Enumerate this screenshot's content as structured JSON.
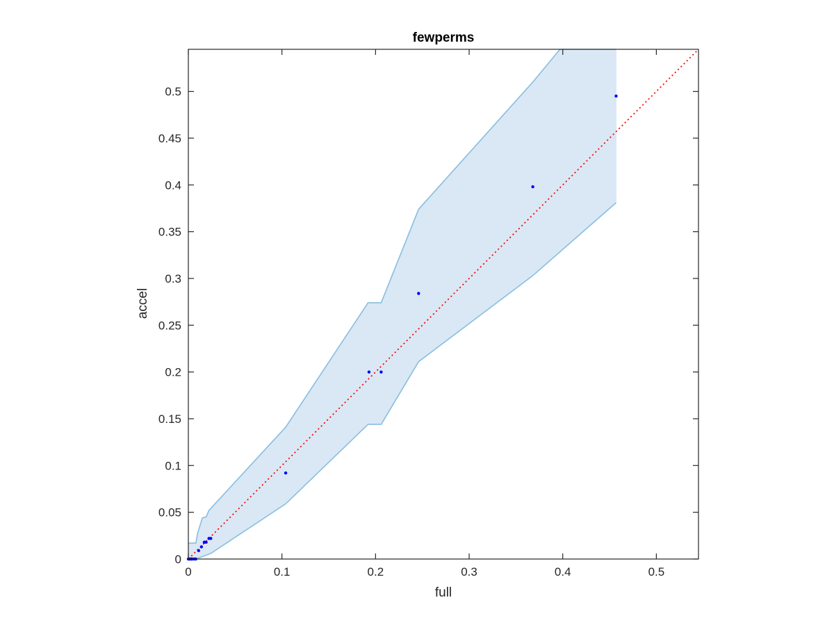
{
  "chart_data": {
    "type": "scatter",
    "title": "fewperms",
    "xlabel": "full",
    "ylabel": "accel",
    "xlim": [
      0,
      0.545
    ],
    "ylim": [
      0,
      0.545
    ],
    "xticks": [
      0,
      0.1,
      0.2,
      0.3,
      0.4,
      0.5
    ],
    "xtick_labels": [
      "0",
      "0.1",
      "0.2",
      "0.3",
      "0.4",
      "0.5"
    ],
    "yticks": [
      0,
      0.05,
      0.1,
      0.15,
      0.2,
      0.25,
      0.3,
      0.35,
      0.4,
      0.45,
      0.5
    ],
    "ytick_labels": [
      "0",
      "0.05",
      "0.1",
      "0.15",
      "0.2",
      "0.25",
      "0.3",
      "0.35",
      "0.4",
      "0.45",
      "0.5"
    ],
    "grid": false,
    "colors": {
      "points": "#0000ff",
      "band_fill": "#d9e8f4",
      "band_edge": "#88bde0",
      "reference_line": "#ff0000",
      "axes": "#262626"
    },
    "points": [
      {
        "x": 0,
        "y": 0
      },
      {
        "x": 0.001,
        "y": 0
      },
      {
        "x": 0.002,
        "y": 0
      },
      {
        "x": 0.003,
        "y": 0
      },
      {
        "x": 0.004,
        "y": 0
      },
      {
        "x": 0.006,
        "y": 0
      },
      {
        "x": 0.008,
        "y": 0
      },
      {
        "x": 0.011,
        "y": 0.009
      },
      {
        "x": 0.014,
        "y": 0.013
      },
      {
        "x": 0.017,
        "y": 0.018
      },
      {
        "x": 0.019,
        "y": 0.018
      },
      {
        "x": 0.022,
        "y": 0.022
      },
      {
        "x": 0.024,
        "y": 0.022
      },
      {
        "x": 0.104,
        "y": 0.092
      },
      {
        "x": 0.193,
        "y": 0.2
      },
      {
        "x": 0.206,
        "y": 0.2
      },
      {
        "x": 0.246,
        "y": 0.284
      },
      {
        "x": 0.368,
        "y": 0.398
      },
      {
        "x": 0.457,
        "y": 0.495
      }
    ],
    "band_upper": [
      {
        "x": 0,
        "y": 0.017
      },
      {
        "x": 0.008,
        "y": 0.017
      },
      {
        "x": 0.01,
        "y": 0.028
      },
      {
        "x": 0.015,
        "y": 0.044
      },
      {
        "x": 0.019,
        "y": 0.045
      },
      {
        "x": 0.022,
        "y": 0.052
      },
      {
        "x": 0.104,
        "y": 0.141
      },
      {
        "x": 0.192,
        "y": 0.274
      },
      {
        "x": 0.206,
        "y": 0.274
      },
      {
        "x": 0.246,
        "y": 0.374
      },
      {
        "x": 0.368,
        "y": 0.51
      },
      {
        "x": 0.397,
        "y": 0.545
      },
      {
        "x": 0.457,
        "y": 0.545
      }
    ],
    "band_lower": [
      {
        "x": 0,
        "y": 0
      },
      {
        "x": 0.008,
        "y": 0
      },
      {
        "x": 0.024,
        "y": 0.006
      },
      {
        "x": 0.104,
        "y": 0.059
      },
      {
        "x": 0.192,
        "y": 0.144
      },
      {
        "x": 0.206,
        "y": 0.144
      },
      {
        "x": 0.246,
        "y": 0.211
      },
      {
        "x": 0.368,
        "y": 0.303
      },
      {
        "x": 0.457,
        "y": 0.381
      }
    ],
    "reference_line": {
      "from": [
        0,
        0
      ],
      "to": [
        0.545,
        0.545
      ],
      "style": "dotted"
    }
  }
}
